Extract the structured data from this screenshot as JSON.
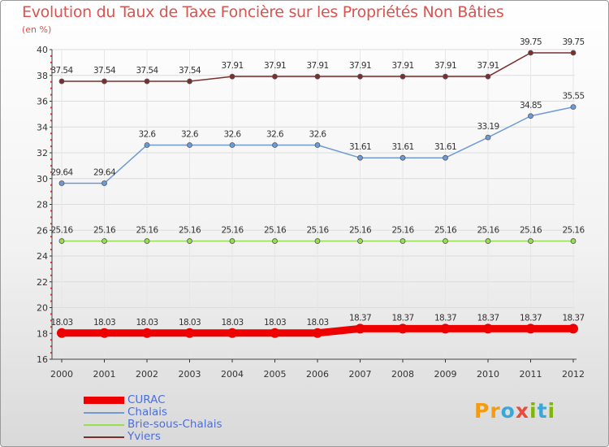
{
  "title": "Evolution du Taux de Taxe Foncière sur les Propriétés Non Bâties",
  "subtitle": "(en %)",
  "logo": {
    "text": "Proxiti",
    "letters": [
      "P",
      "r",
      "o",
      "x",
      "i",
      "t",
      "i"
    ],
    "colors": [
      "#f39c12",
      "#f39c12",
      "#3aa7d8",
      "#e74c3c",
      "#7fb800",
      "#3aa7d8",
      "#7fb800"
    ]
  },
  "chart_data": {
    "type": "line",
    "title": "Evolution du Taux de Taxe Foncière sur les Propriétés Non Bâties",
    "ylabel": "(en %)",
    "xlabel": "",
    "ylim": [
      16,
      40
    ],
    "yticks": [
      16,
      18,
      20,
      22,
      24,
      26,
      28,
      30,
      32,
      34,
      36,
      38,
      40
    ],
    "categories": [
      "2000",
      "2001",
      "2002",
      "2003",
      "2004",
      "2005",
      "2006",
      "2007",
      "2008",
      "2009",
      "2010",
      "2011",
      "2012"
    ],
    "grid": true,
    "legend_position": "bottom-left",
    "series": [
      {
        "name": "CURAC",
        "color": "#ee0000",
        "width": 9,
        "values": [
          18.03,
          18.03,
          18.03,
          18.03,
          18.03,
          18.03,
          18.03,
          18.37,
          18.37,
          18.37,
          18.37,
          18.37,
          18.37
        ],
        "labels": [
          "18.03",
          "18.03",
          "18.03",
          "18.03",
          "18.03",
          "18.03",
          "18.03",
          "18.37",
          "18.37",
          "18.37",
          "18.37",
          "18.37",
          "18.37"
        ]
      },
      {
        "name": "Chalais",
        "color": "#6f9ad6",
        "width": 1.5,
        "values": [
          29.64,
          29.64,
          32.6,
          32.6,
          32.6,
          32.6,
          32.6,
          31.61,
          31.61,
          31.61,
          33.19,
          34.85,
          35.55
        ],
        "labels": [
          "29.64",
          "29.64",
          "32.6",
          "32.6",
          "32.6",
          "32.6",
          "32.6",
          "31.61",
          "31.61",
          "31.61",
          "33.19",
          "34.85",
          "35.55"
        ]
      },
      {
        "name": "Brie-sous-Chalais",
        "color": "#99dd55",
        "width": 1.5,
        "values": [
          25.16,
          25.16,
          25.16,
          25.16,
          25.16,
          25.16,
          25.16,
          25.16,
          25.16,
          25.16,
          25.16,
          25.16,
          25.16
        ],
        "labels": [
          "25.16",
          "25.16",
          "25.16",
          "25.16",
          "25.16",
          "25.16",
          "25.16",
          "25.16",
          "25.16",
          "25.16",
          "25.16",
          "25.16",
          "25.16"
        ]
      },
      {
        "name": "Yviers",
        "color": "#7a2e2e",
        "width": 1.5,
        "values": [
          37.54,
          37.54,
          37.54,
          37.54,
          37.91,
          37.91,
          37.91,
          37.91,
          37.91,
          37.91,
          37.91,
          39.75,
          39.75
        ],
        "labels": [
          "37.54",
          "37.54",
          "37.54",
          "37.54",
          "37.91",
          "37.91",
          "37.91",
          "37.91",
          "37.91",
          "37.91",
          "37.91",
          "39.75",
          "39.75"
        ]
      }
    ]
  }
}
